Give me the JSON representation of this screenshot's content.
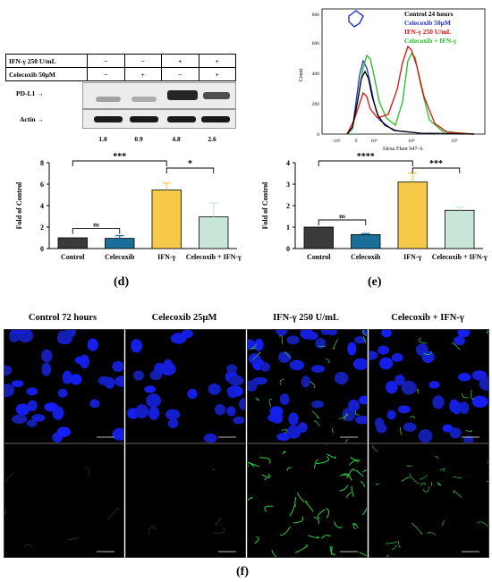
{
  "western_blot": {
    "rows": [
      {
        "label": "IFN-γ 250 U/mL",
        "values": [
          "−",
          "−",
          "+",
          "+"
        ]
      },
      {
        "label": "Celecoxib 50μM",
        "values": [
          "−",
          "+",
          "−",
          "+"
        ]
      }
    ],
    "bands": [
      "PD-L1",
      "Actin"
    ],
    "quantification": [
      "1.0",
      "0.9",
      "4.8",
      "2.6"
    ]
  },
  "flow": {
    "legend": [
      "Control 24 hours",
      "Celecoxib 50μM",
      "IFN-γ 250 U/mL",
      "Celecoxib + IFN-γ"
    ],
    "legend_colors": [
      "#000000",
      "#1f2fd0",
      "#e01010",
      "#20c020"
    ],
    "ylabel": "Count",
    "xlabel": "Alexa Fluor 647-A",
    "yticks": [
      "0",
      "200",
      "400",
      "600",
      "800"
    ],
    "xticks": [
      "-10³",
      "0",
      "10³",
      "10⁴",
      "10⁵"
    ]
  },
  "chart_data": [
    {
      "type": "bar",
      "categories": [
        "Control",
        "Celecoxib",
        "IFN-γ",
        "Celecoxib + IFN-γ"
      ],
      "values": [
        1.0,
        0.95,
        5.45,
        2.95
      ],
      "errors": [
        0,
        0.25,
        0.65,
        1.3
      ],
      "ylabel": "Fold of Control",
      "ylim": [
        0,
        8
      ],
      "yticks": [
        "0",
        "2",
        "4",
        "6",
        "8"
      ],
      "colors": [
        "#3a3a3a",
        "#1a6f99",
        "#f7c948",
        "#c8e6d8"
      ],
      "significance": [
        {
          "from": 0,
          "to": 1,
          "label": "ns"
        },
        {
          "from": 0,
          "to": 2,
          "label": "***"
        },
        {
          "from": 2,
          "to": 3,
          "label": "*"
        }
      ],
      "panel": "(d)"
    },
    {
      "type": "bar",
      "categories": [
        "Control",
        "Celecoxib",
        "IFN-γ",
        "Celecoxib + IFN-γ"
      ],
      "values": [
        1.0,
        0.65,
        3.1,
        1.78
      ],
      "errors": [
        0,
        0.05,
        0.42,
        0.15
      ],
      "ylabel": "Fold of Control",
      "ylim": [
        0,
        4
      ],
      "yticks": [
        "0",
        "1",
        "2",
        "3",
        "4"
      ],
      "colors": [
        "#3a3a3a",
        "#1a6f99",
        "#f7c948",
        "#c8e6d8"
      ],
      "significance": [
        {
          "from": 0,
          "to": 1,
          "label": "ns"
        },
        {
          "from": 0,
          "to": 2,
          "label": "****"
        },
        {
          "from": 2,
          "to": 3,
          "label": "***"
        }
      ],
      "panel": "(e)"
    }
  ],
  "microscopy": {
    "captions": [
      "Control 72 hours",
      "Celecoxib 25μM",
      "IFN-γ 250 U/mL",
      "Celecoxib + IFN-γ"
    ],
    "panel": "(f)"
  }
}
